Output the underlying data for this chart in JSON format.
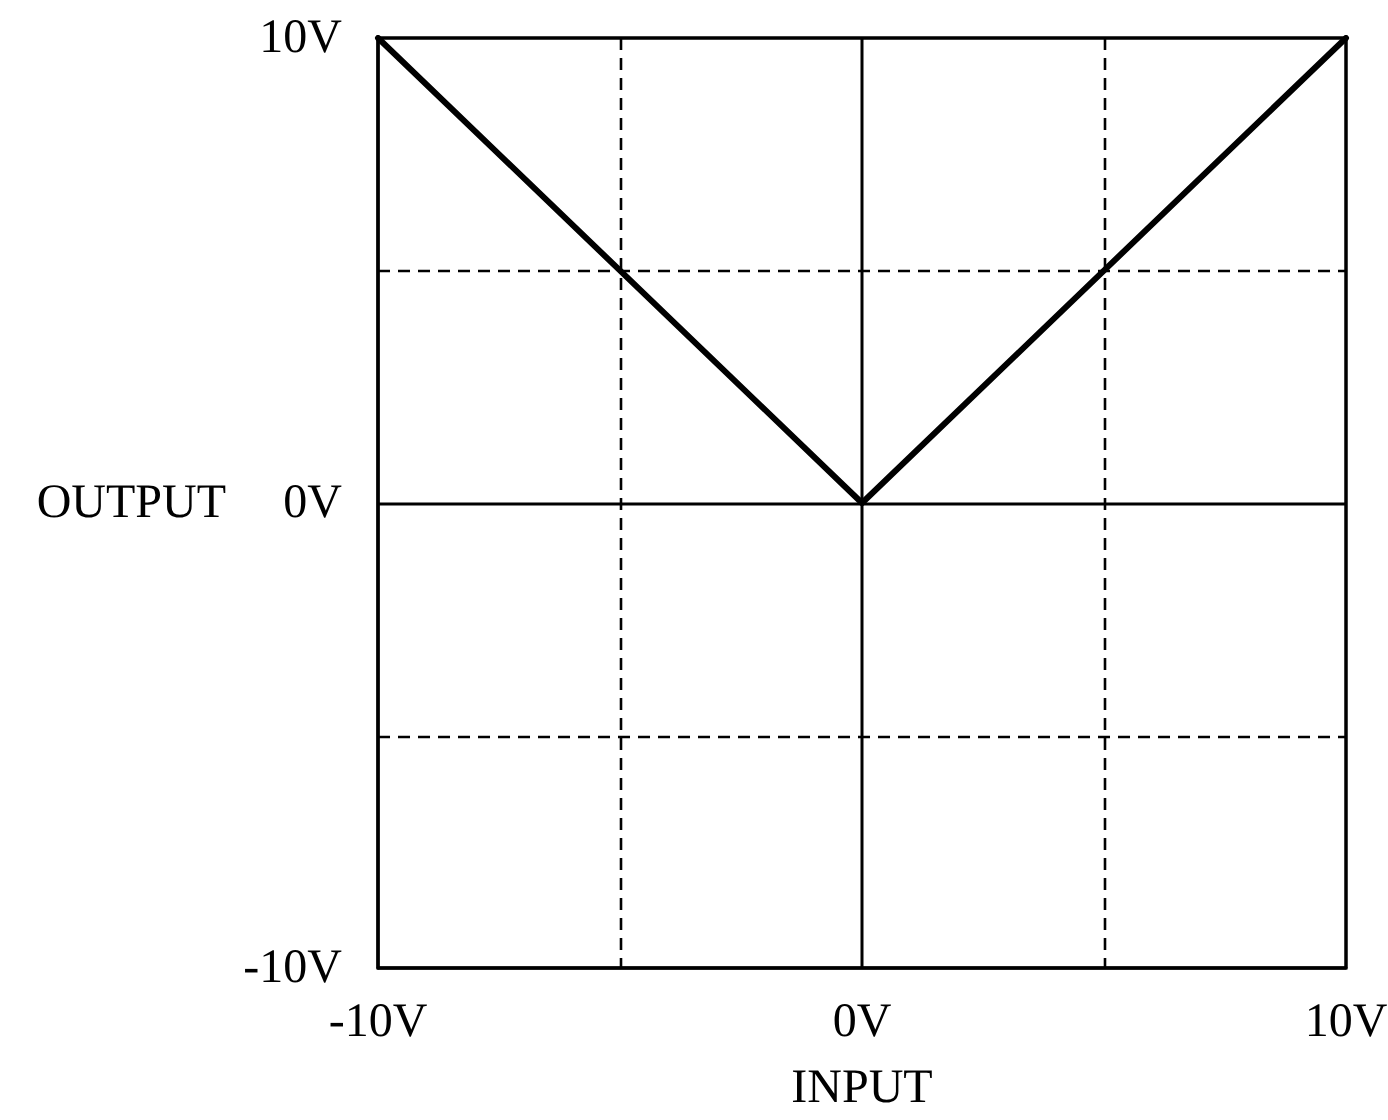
{
  "chart_data": {
    "type": "line",
    "xlabel": "INPUT",
    "ylabel": "OUTPUT",
    "x": [
      -10,
      0,
      10
    ],
    "series": [
      {
        "color": "#000000",
        "values": [
          10,
          0,
          10
        ]
      }
    ],
    "xlim": [
      -10,
      10
    ],
    "ylim": [
      -10,
      10
    ],
    "xticks": [
      {
        "value": -10,
        "label": "-10V"
      },
      {
        "value": -5,
        "label": null
      },
      {
        "value": 0,
        "label": "0V"
      },
      {
        "value": 5,
        "label": null
      },
      {
        "value": 10,
        "label": "10V"
      }
    ],
    "yticks": [
      {
        "value": -10,
        "label": "-10V"
      },
      {
        "value": -5,
        "label": null
      },
      {
        "value": 0,
        "label": "0V"
      },
      {
        "value": 5,
        "label": null
      },
      {
        "value": 10,
        "label": "10V"
      }
    ],
    "grid": true,
    "marker": "none",
    "line_style": "solid"
  }
}
